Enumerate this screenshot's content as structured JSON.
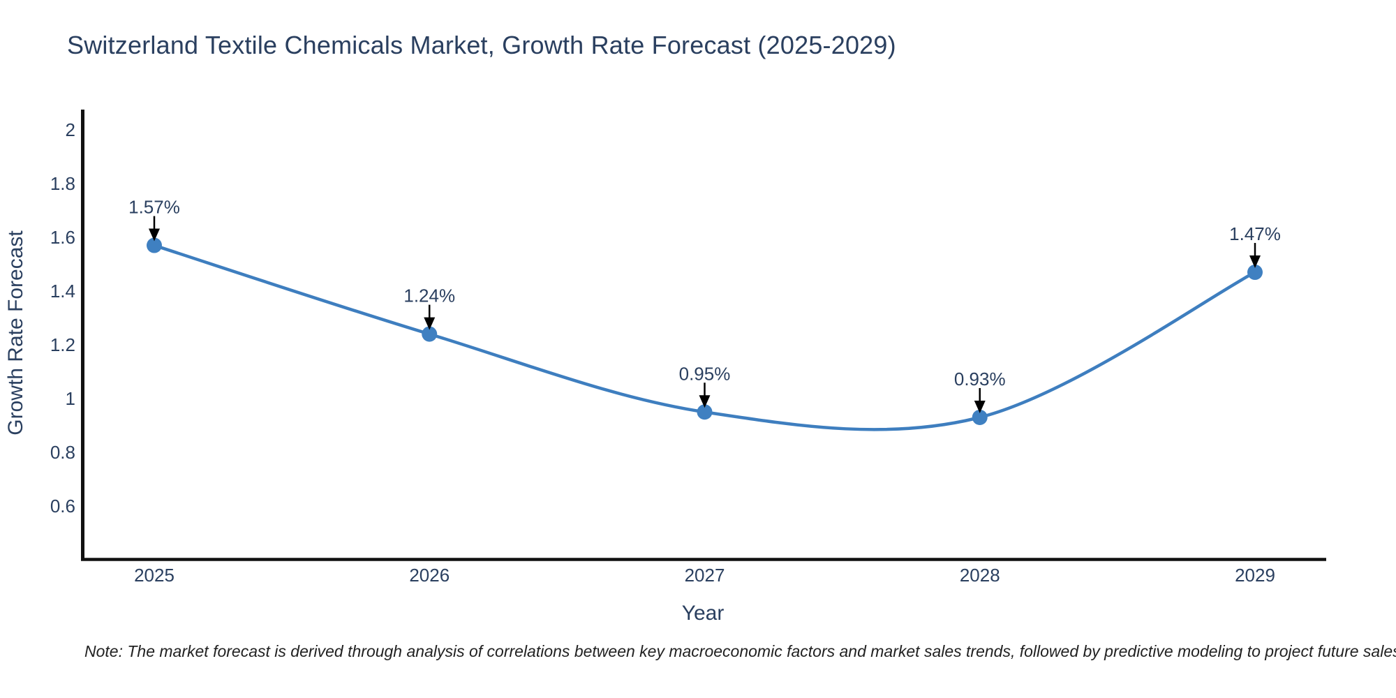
{
  "note": "Note: The market forecast is derived through analysis of correlations between key macroeconomic factors and market sales trends, followed by predictive modeling to project future sales",
  "chart_data": {
    "type": "line",
    "title": "Switzerland Textile Chemicals Market, Growth Rate Forecast (2025-2029)",
    "xlabel": "Year",
    "ylabel": "Growth Rate Forecast",
    "x": [
      2025,
      2026,
      2027,
      2028,
      2029
    ],
    "xticks": [
      "2025",
      "2026",
      "2027",
      "2028",
      "2029"
    ],
    "series": [
      {
        "name": "Growth Rate Forecast",
        "values": [
          1.57,
          1.24,
          0.95,
          0.93,
          1.47
        ],
        "point_labels": [
          "1.57%",
          "1.24%",
          "0.95%",
          "0.93%",
          "1.47%"
        ]
      }
    ],
    "yticks": [
      "2",
      "1.8",
      "1.6",
      "1.4",
      "1.2",
      "1",
      "0.8",
      "0.6"
    ],
    "ytick_values": [
      2,
      1.8,
      1.6,
      1.4,
      1.2,
      1,
      0.8,
      0.6
    ],
    "ylim": [
      0.4,
      2.07
    ],
    "grid": false,
    "line_shape": "spline",
    "legend": "none",
    "colors": {
      "line": "#3e7ebf",
      "marker": "#3f80c1",
      "axis_line": "#111111",
      "text": "#2a3f5f",
      "annotation_arrow": "#000000",
      "background": "#ffffff"
    }
  }
}
